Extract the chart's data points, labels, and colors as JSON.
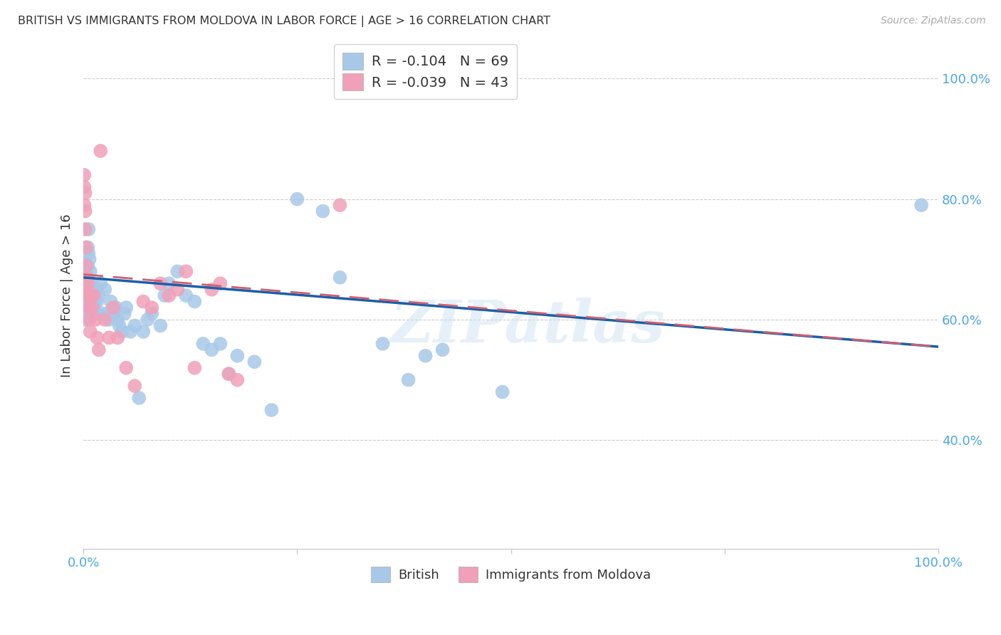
{
  "title": "BRITISH VS IMMIGRANTS FROM MOLDOVA IN LABOR FORCE | AGE > 16 CORRELATION CHART",
  "source": "Source: ZipAtlas.com",
  "ylabel": "In Labor Force | Age > 16",
  "ytick_labels": [
    "40.0%",
    "60.0%",
    "80.0%",
    "100.0%"
  ],
  "ytick_values": [
    0.4,
    0.6,
    0.8,
    1.0
  ],
  "xlim": [
    0.0,
    1.0
  ],
  "ylim": [
    0.22,
    1.06
  ],
  "watermark": "ZIPatlas",
  "british_color": "#a8c8e8",
  "moldova_color": "#f0a0b8",
  "british_line_color": "#1a5fa8",
  "moldova_line_color": "#d06070",
  "background_color": "#ffffff",
  "grid_color": "#cccccc",
  "title_color": "#333333",
  "axis_label_color": "#4da6e8",
  "british_R": -0.104,
  "british_N": 69,
  "moldova_R": -0.039,
  "moldova_N": 43,
  "british_x": [
    0.001,
    0.001,
    0.001,
    0.001,
    0.002,
    0.002,
    0.002,
    0.003,
    0.003,
    0.003,
    0.003,
    0.004,
    0.004,
    0.005,
    0.005,
    0.006,
    0.006,
    0.007,
    0.008,
    0.009,
    0.01,
    0.011,
    0.012,
    0.013,
    0.014,
    0.015,
    0.016,
    0.018,
    0.02,
    0.022,
    0.025,
    0.027,
    0.03,
    0.032,
    0.035,
    0.038,
    0.04,
    0.042,
    0.045,
    0.048,
    0.05,
    0.055,
    0.06,
    0.065,
    0.07,
    0.075,
    0.08,
    0.09,
    0.095,
    0.1,
    0.11,
    0.12,
    0.13,
    0.14,
    0.15,
    0.16,
    0.17,
    0.18,
    0.2,
    0.22,
    0.25,
    0.28,
    0.3,
    0.35,
    0.38,
    0.4,
    0.42,
    0.49,
    0.98
  ],
  "british_y": [
    0.67,
    0.65,
    0.62,
    0.6,
    0.68,
    0.655,
    0.64,
    0.68,
    0.66,
    0.635,
    0.61,
    0.67,
    0.65,
    0.72,
    0.69,
    0.75,
    0.71,
    0.7,
    0.68,
    0.66,
    0.66,
    0.64,
    0.62,
    0.63,
    0.61,
    0.65,
    0.63,
    0.64,
    0.66,
    0.61,
    0.65,
    0.61,
    0.6,
    0.63,
    0.61,
    0.62,
    0.6,
    0.59,
    0.58,
    0.61,
    0.62,
    0.58,
    0.59,
    0.47,
    0.58,
    0.6,
    0.61,
    0.59,
    0.64,
    0.66,
    0.68,
    0.64,
    0.63,
    0.56,
    0.55,
    0.56,
    0.51,
    0.54,
    0.53,
    0.45,
    0.8,
    0.78,
    0.67,
    0.56,
    0.5,
    0.54,
    0.55,
    0.48,
    0.79
  ],
  "moldova_x": [
    0.001,
    0.001,
    0.001,
    0.001,
    0.002,
    0.002,
    0.002,
    0.003,
    0.003,
    0.003,
    0.003,
    0.004,
    0.004,
    0.005,
    0.005,
    0.006,
    0.007,
    0.008,
    0.009,
    0.01,
    0.012,
    0.014,
    0.016,
    0.018,
    0.02,
    0.025,
    0.03,
    0.035,
    0.04,
    0.05,
    0.06,
    0.07,
    0.08,
    0.09,
    0.1,
    0.11,
    0.12,
    0.13,
    0.15,
    0.16,
    0.17,
    0.18,
    0.3
  ],
  "moldova_y": [
    0.67,
    0.84,
    0.82,
    0.79,
    0.81,
    0.78,
    0.75,
    0.72,
    0.69,
    0.67,
    0.65,
    0.67,
    0.64,
    0.66,
    0.64,
    0.62,
    0.6,
    0.58,
    0.64,
    0.62,
    0.64,
    0.6,
    0.57,
    0.55,
    0.88,
    0.6,
    0.57,
    0.62,
    0.57,
    0.52,
    0.49,
    0.63,
    0.62,
    0.66,
    0.64,
    0.65,
    0.68,
    0.52,
    0.65,
    0.66,
    0.51,
    0.5,
    0.79
  ]
}
